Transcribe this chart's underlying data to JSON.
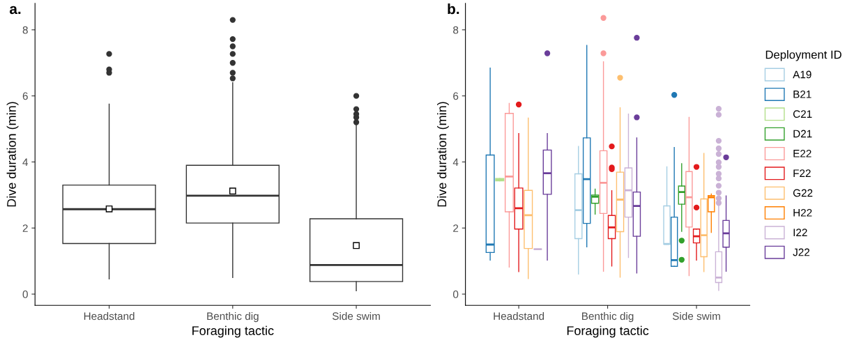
{
  "chart_data": [
    {
      "type": "box",
      "title": "a.",
      "xlabel": "Foraging tactic",
      "ylabel": "Dive duration (min)",
      "categories": [
        "Headstand",
        "Benthic dig",
        "Side swim"
      ],
      "ylim": [
        -0.34,
        8.8
      ],
      "yticks": [
        0,
        2,
        4,
        6,
        8
      ],
      "grid": false,
      "color": "#333333",
      "boxes": [
        {
          "low": 0.46,
          "q1": 1.53,
          "median": 2.57,
          "q3": 3.3,
          "high": 5.75,
          "mean": 2.58,
          "outliers": [
            6.7,
            6.8,
            7.27
          ]
        },
        {
          "low": 0.5,
          "q1": 2.15,
          "median": 2.98,
          "q3": 3.9,
          "high": 6.4,
          "mean": 3.12,
          "outliers": [
            6.53,
            6.7,
            7.0,
            7.27,
            7.5,
            7.72,
            8.3
          ]
        },
        {
          "low": 0.1,
          "q1": 0.38,
          "median": 0.88,
          "q3": 2.28,
          "high": 5.15,
          "mean": 1.47,
          "outliers": [
            5.2,
            5.35,
            5.45,
            5.6,
            6.0
          ]
        }
      ]
    },
    {
      "type": "box",
      "title": "b.",
      "xlabel": "Foraging tactic",
      "ylabel": "Dive duration (min)",
      "categories": [
        "Headstand",
        "Benthic dig",
        "Side swim"
      ],
      "ylim": [
        -0.34,
        8.8
      ],
      "yticks": [
        0,
        2,
        4,
        6,
        8
      ],
      "grid": false,
      "legend": "right",
      "legend_title": "Deployment ID",
      "series": [
        {
          "name": "A19",
          "color": "#a6cee3",
          "boxes": [
            null,
            {
              "low": 0.61,
              "q1": 1.68,
              "median": 2.54,
              "q3": 3.64,
              "high": 4.47
            },
            {
              "low": 1.51,
              "q1": 1.51,
              "median": 1.52,
              "q3": 2.67,
              "high": 3.85
            }
          ]
        },
        {
          "name": "B21",
          "color": "#1f78b4",
          "boxes": [
            {
              "low": 1.03,
              "q1": 1.26,
              "median": 1.5,
              "q3": 4.21,
              "high": 6.84
            },
            {
              "low": 1.43,
              "q1": 2.14,
              "median": 3.48,
              "q3": 4.73,
              "high": 7.53
            },
            {
              "low": 0.84,
              "q1": 0.84,
              "median": 1.03,
              "q3": 2.33,
              "high": 4.44,
              "outliers": [
                6.03
              ]
            }
          ]
        },
        {
          "name": "C21",
          "color": "#b2df8a",
          "boxes": [
            {
              "low": 3.43,
              "q1": 3.43,
              "median": 3.47,
              "q3": 3.5,
              "high": 3.5
            },
            null,
            null
          ]
        },
        {
          "name": "D21",
          "color": "#33a02c",
          "boxes": [
            null,
            {
              "low": 2.42,
              "q1": 2.75,
              "median": 2.95,
              "q3": 3.0,
              "high": 3.18
            },
            {
              "low": 1.9,
              "q1": 2.72,
              "median": 3.09,
              "q3": 3.27,
              "high": 3.95,
              "outliers": [
                1.62,
                1.04
              ]
            }
          ]
        },
        {
          "name": "E22",
          "color": "#fb9a99",
          "boxes": [
            {
              "low": 0.82,
              "q1": 2.49,
              "median": 3.56,
              "q3": 5.47,
              "high": 5.77
            },
            {
              "low": 0.69,
              "q1": 2.44,
              "median": 3.37,
              "q3": 4.34,
              "high": 7.03,
              "outliers": [
                8.36,
                7.29
              ]
            },
            {
              "low": 0.56,
              "q1": 2.03,
              "median": 2.93,
              "q3": 3.71,
              "high": 5.35
            }
          ]
        },
        {
          "name": "F22",
          "color": "#e31a1c",
          "boxes": [
            {
              "low": 0.68,
              "q1": 1.97,
              "median": 2.6,
              "q3": 3.21,
              "high": 4.86,
              "outliers": [
                5.74
              ]
            },
            {
              "low": 0.85,
              "q1": 1.68,
              "median": 2.02,
              "q3": 2.38,
              "high": 3.13,
              "outliers": [
                4.47,
                3.83,
                3.78
              ]
            },
            {
              "low": 1.03,
              "q1": 1.55,
              "median": 1.75,
              "q3": 1.97,
              "high": 1.97,
              "outliers": [
                3.85,
                2.62
              ]
            }
          ]
        },
        {
          "name": "G22",
          "color": "#fdbf6f",
          "boxes": [
            {
              "low": 0.47,
              "q1": 1.38,
              "median": 2.39,
              "q3": 3.14,
              "high": 5.33
            },
            {
              "low": 0.51,
              "q1": 1.89,
              "median": 2.86,
              "q3": 3.69,
              "high": 5.64,
              "outliers": [
                6.55
              ]
            },
            {
              "low": 0.68,
              "q1": 1.13,
              "median": 1.78,
              "q3": 2.88,
              "high": 4.26
            }
          ]
        },
        {
          "name": "H22",
          "color": "#ff7f00",
          "boxes": [
            null,
            null,
            {
              "low": 1.87,
              "q1": 2.49,
              "median": 2.93,
              "q3": 2.98,
              "high": 3.03
            }
          ]
        },
        {
          "name": "I22",
          "color": "#cab2d6",
          "boxes": [
            {
              "low": 1.36,
              "q1": 1.36,
              "median": 1.36,
              "q3": 1.36,
              "high": 1.36
            },
            {
              "low": 1.11,
              "q1": 2.33,
              "median": 3.14,
              "q3": 3.82,
              "high": 5.45
            },
            {
              "low": 0.11,
              "q1": 0.35,
              "median": 0.5,
              "q3": 1.28,
              "high": 2.72,
              "outliers": [
                5.61,
                5.43,
                4.64,
                4.41,
                4.24,
                3.99,
                3.85,
                3.64,
                3.5,
                3.28,
                3.07,
                2.9,
                2.76
              ]
            }
          ]
        },
        {
          "name": "J22",
          "color": "#6a3d9a",
          "boxes": [
            {
              "low": 1.03,
              "q1": 3.02,
              "median": 3.66,
              "q3": 4.36,
              "high": 4.86,
              "outliers": [
                7.29
              ]
            },
            {
              "low": 0.64,
              "q1": 1.75,
              "median": 2.67,
              "q3": 3.09,
              "high": 4.73,
              "outliers": [
                7.76,
                5.35
              ]
            },
            {
              "low": 0.69,
              "q1": 1.42,
              "median": 1.84,
              "q3": 2.23,
              "high": 2.97,
              "outliers": [
                4.14
              ]
            }
          ]
        }
      ]
    }
  ]
}
